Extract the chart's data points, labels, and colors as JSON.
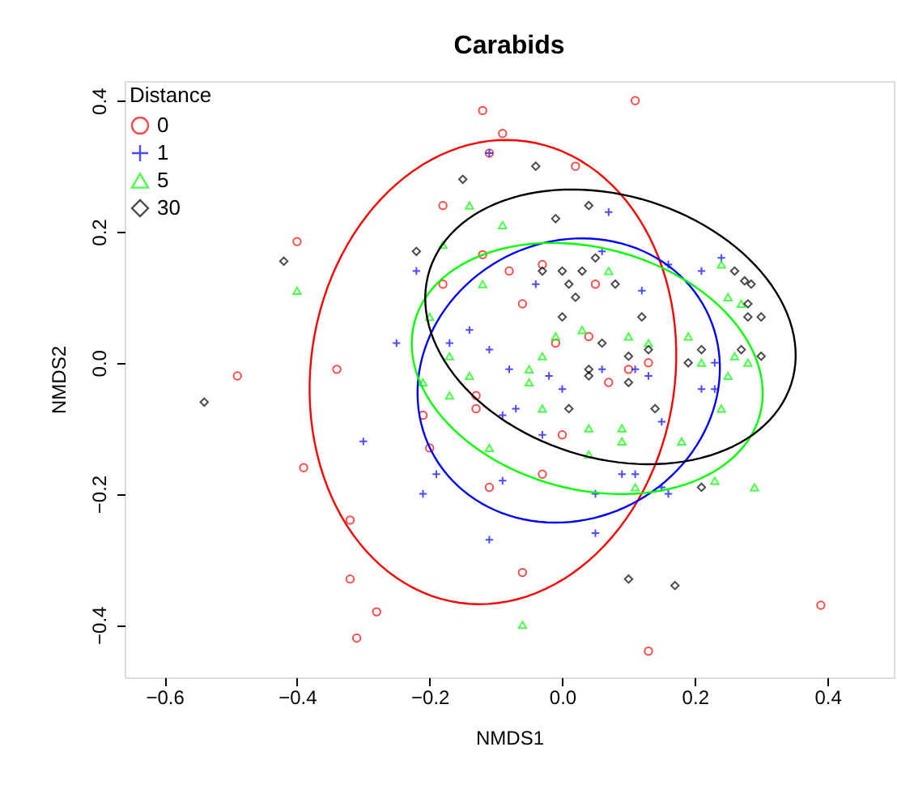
{
  "chart_data": {
    "type": "scatter",
    "title": "Carabids",
    "xlabel": "NMDS1",
    "ylabel": "NMDS2",
    "legend_title": "Distance",
    "legend": "top left",
    "xlim": [
      -0.66,
      0.5
    ],
    "ylim": [
      -0.48,
      0.43
    ],
    "xticks": [
      -0.6,
      -0.4,
      -0.2,
      {
        "value": 0,
        "label": "0.0"
      },
      0.2,
      0.4
    ],
    "yticks": [
      -0.4,
      -0.2,
      {
        "value": 0,
        "label": "0.0"
      },
      0.2,
      0.4
    ],
    "series": [
      {
        "name": "0",
        "color": "#ff0000",
        "marker": "circle",
        "x": [
          0.11,
          -0.12,
          -0.09,
          0.02,
          -0.18,
          -0.4,
          -0.34,
          -0.39,
          -0.32,
          -0.32,
          -0.28,
          -0.31,
          -0.11,
          -0.12,
          -0.03,
          -0.08,
          -0.18,
          -0.06,
          0.05,
          -0.01,
          0.04,
          0.1,
          0.07,
          0.13,
          -0.13,
          -0.13,
          -0.21,
          -0.2,
          0.0,
          -0.11,
          -0.03,
          -0.06,
          0.39,
          0.13,
          -0.49
        ],
        "values": [
          0.4,
          0.385,
          0.35,
          0.3,
          0.24,
          0.185,
          -0.01,
          -0.16,
          -0.24,
          -0.33,
          -0.38,
          -0.42,
          0.32,
          0.165,
          0.15,
          0.14,
          0.12,
          0.09,
          0.12,
          0.03,
          0.04,
          -0.01,
          -0.03,
          0.0,
          -0.05,
          -0.07,
          -0.08,
          -0.13,
          -0.11,
          -0.19,
          -0.17,
          -0.32,
          -0.37,
          -0.44,
          -0.02
        ]
      },
      {
        "name": "1",
        "color": "#0000ff",
        "marker": "cross",
        "x": [
          -0.11,
          0.07,
          0.06,
          -0.22,
          -0.04,
          -0.14,
          -0.17,
          -0.25,
          -0.11,
          -0.08,
          -0.02,
          0.06,
          0.24,
          0.21,
          0.16,
          0.12,
          0.23,
          0.11,
          0.13,
          0.0,
          -0.09,
          -0.07,
          -0.03,
          -0.19,
          -0.21,
          -0.09,
          0.09,
          0.05,
          0.05,
          -0.11,
          0.15,
          0.21,
          0.23,
          0.11,
          0.15,
          0.16,
          -0.3
        ],
        "values": [
          0.32,
          0.23,
          0.17,
          0.14,
          0.12,
          0.05,
          0.03,
          0.03,
          0.02,
          -0.01,
          -0.02,
          -0.01,
          0.16,
          0.14,
          0.15,
          0.11,
          0.0,
          -0.01,
          -0.02,
          -0.04,
          -0.08,
          -0.07,
          -0.11,
          -0.17,
          -0.2,
          -0.18,
          -0.17,
          -0.2,
          -0.26,
          -0.27,
          -0.09,
          -0.04,
          -0.04,
          -0.17,
          -0.19,
          -0.2,
          -0.12
        ]
      },
      {
        "name": "5",
        "color": "#00ff00",
        "marker": "triangle",
        "x": [
          -0.4,
          -0.14,
          -0.09,
          -0.18,
          -0.12,
          0.07,
          -0.2,
          -0.17,
          -0.01,
          0.03,
          -0.03,
          -0.05,
          -0.14,
          -0.21,
          -0.05,
          0.24,
          0.25,
          0.27,
          0.1,
          0.13,
          0.19,
          0.21,
          0.26,
          0.28,
          0.25,
          -0.17,
          -0.03,
          0.04,
          0.09,
          0.09,
          -0.11,
          0.04,
          -0.06,
          0.24,
          0.18,
          0.11,
          0.23,
          0.29
        ],
        "values": [
          0.11,
          0.24,
          0.21,
          0.18,
          0.12,
          0.14,
          0.07,
          0.01,
          0.04,
          0.05,
          0.01,
          -0.01,
          -0.02,
          -0.03,
          -0.03,
          0.15,
          0.1,
          0.09,
          0.04,
          0.03,
          0.04,
          0.0,
          0.01,
          0.0,
          -0.02,
          -0.05,
          -0.07,
          -0.1,
          -0.1,
          -0.12,
          -0.13,
          -0.14,
          -0.4,
          -0.07,
          -0.12,
          -0.19,
          -0.18,
          -0.19
        ]
      },
      {
        "name": "30",
        "color": "#000000",
        "marker": "diamond",
        "x": [
          -0.42,
          -0.54,
          -0.15,
          -0.04,
          0.04,
          -0.01,
          -0.22,
          0.05,
          -0.03,
          0.0,
          0.03,
          0.01,
          0.08,
          0.02,
          0.0,
          0.06,
          0.1,
          0.04,
          0.04,
          0.26,
          0.275,
          0.285,
          0.28,
          0.28,
          0.3,
          0.12,
          0.21,
          0.19,
          0.27,
          0.3,
          0.13,
          0.01,
          0.1,
          0.1,
          0.14,
          0.21,
          0.17
        ],
        "values": [
          0.155,
          -0.06,
          0.28,
          0.3,
          0.24,
          0.22,
          0.17,
          0.16,
          0.14,
          0.14,
          0.14,
          0.12,
          0.12,
          0.1,
          0.07,
          0.03,
          0.01,
          -0.01,
          -0.02,
          0.14,
          0.125,
          0.12,
          0.09,
          0.07,
          0.07,
          0.07,
          0.02,
          0.0,
          0.02,
          0.01,
          0.02,
          -0.07,
          -0.33,
          -0.03,
          -0.07,
          -0.19,
          -0.34
        ]
      }
    ]
  }
}
